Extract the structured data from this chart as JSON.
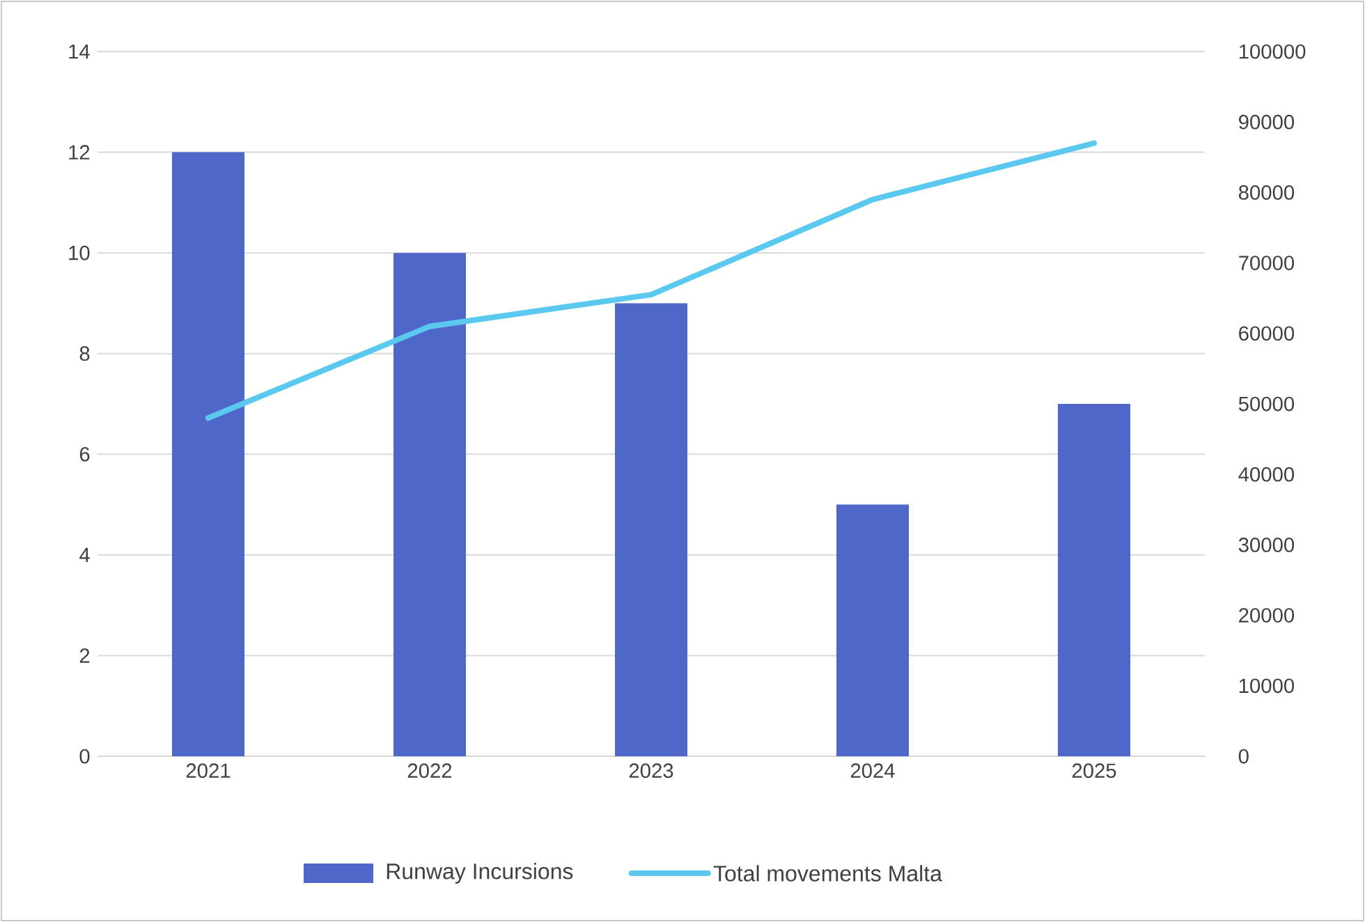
{
  "chart_data": {
    "type": "bar",
    "categories": [
      "2021",
      "2022",
      "2023",
      "2024",
      "2025"
    ],
    "series": [
      {
        "name": "Runway Incursions",
        "color": "#4f67c8",
        "values": [
          12,
          10,
          9,
          5,
          7
        ]
      },
      {
        "name": "Total movements Malta",
        "type": "line",
        "axis": "y2",
        "color": "#5bc8f0",
        "values": [
          48000,
          61000,
          65500,
          79000,
          87000
        ]
      }
    ],
    "ylim": [
      0,
      14
    ],
    "yticks": [
      0,
      2,
      4,
      6,
      8,
      10,
      12,
      14
    ],
    "y2lim": [
      0,
      100000
    ],
    "y2ticks": [
      0,
      10000,
      20000,
      30000,
      40000,
      50000,
      60000,
      70000,
      80000,
      90000,
      100000
    ],
    "grid": "y",
    "legend": "bottom"
  }
}
